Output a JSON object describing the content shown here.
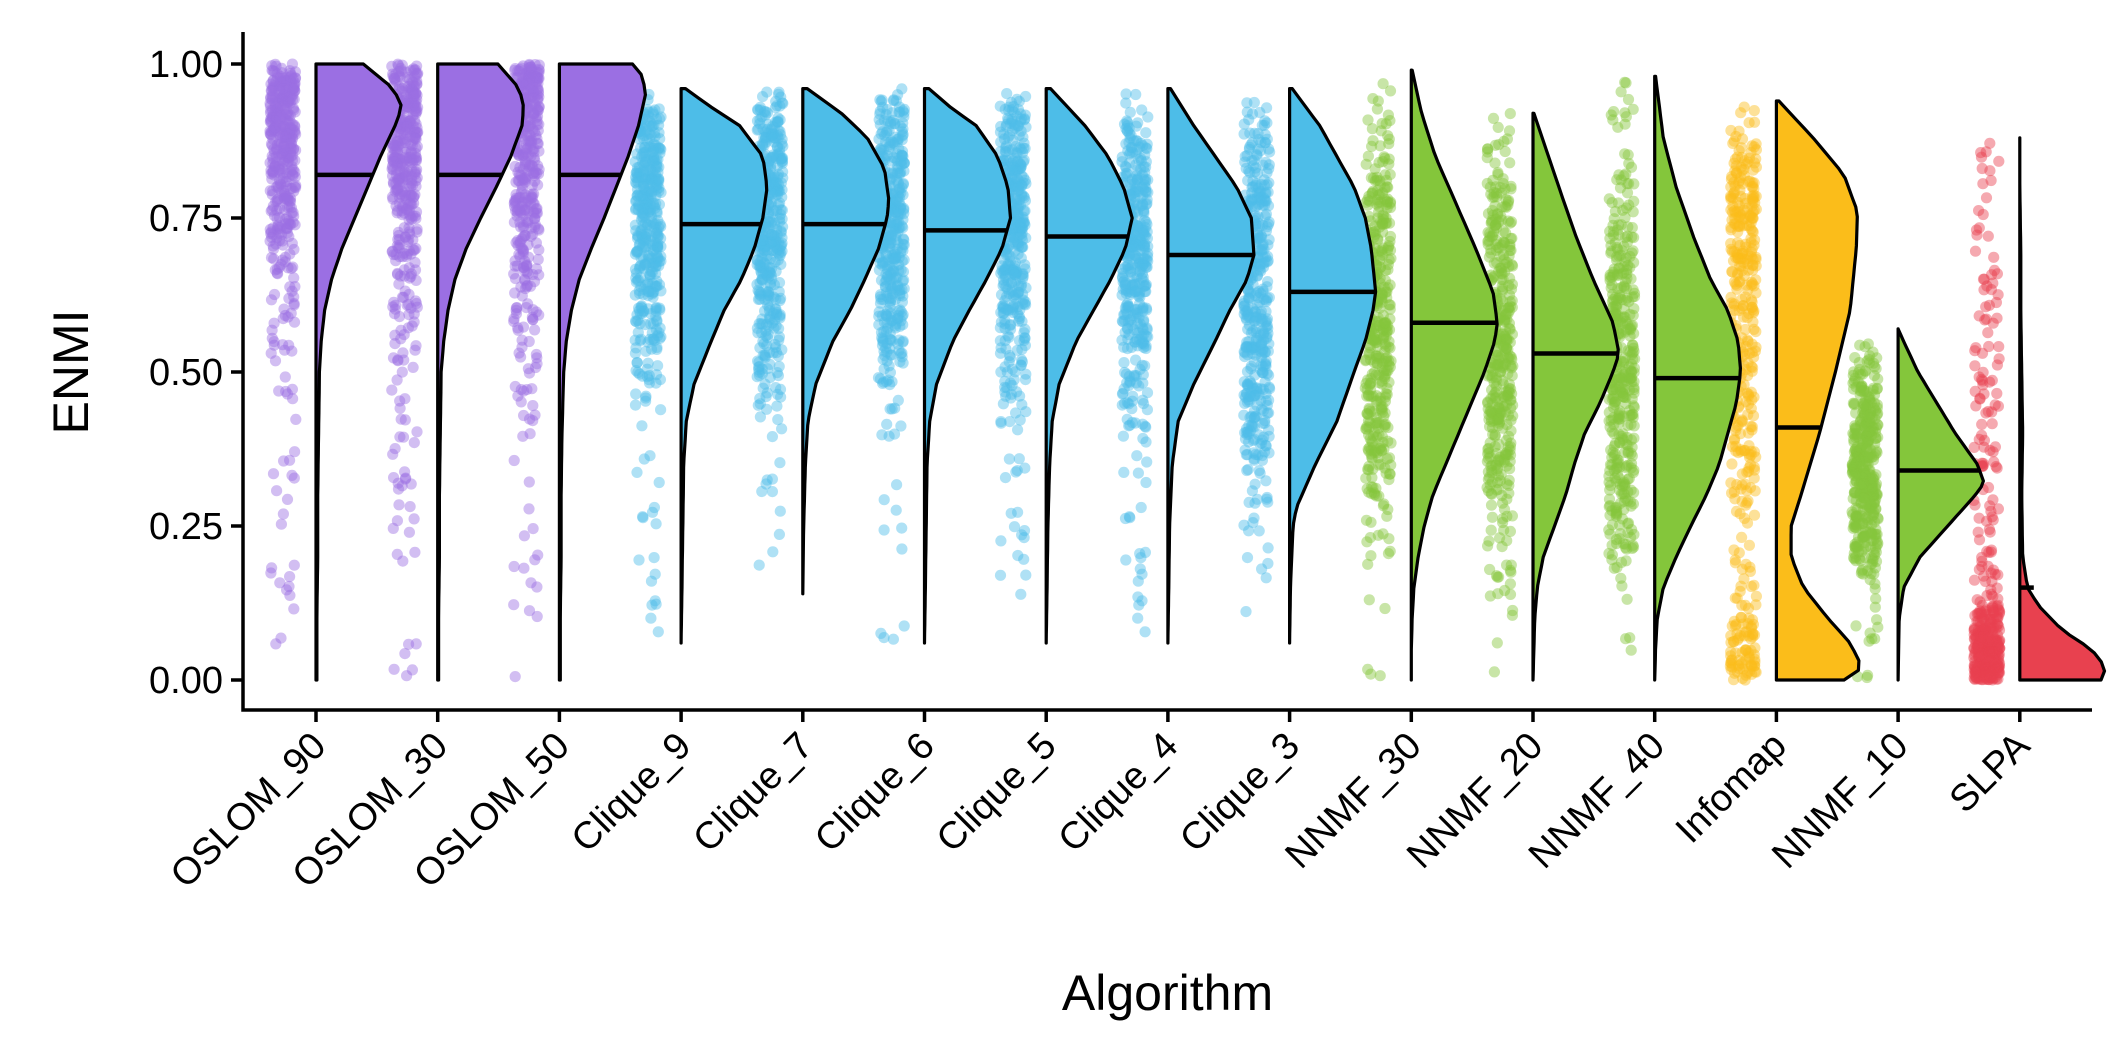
{
  "chart_data": {
    "type": "raincloud",
    "title": "",
    "xlabel": "Algorithm",
    "ylabel": "ENMI",
    "ylim": [
      0,
      1
    ],
    "y_ticks": [
      "0.00",
      "0.25",
      "0.50",
      "0.75",
      "1.00"
    ],
    "y_tick_values": [
      0,
      0.25,
      0.5,
      0.75,
      1.0
    ],
    "categories": [
      "OSLOM_90",
      "OSLOM_30",
      "OSLOM_50",
      "Clique_9",
      "Clique_7",
      "Clique_6",
      "Clique_5",
      "Clique_4",
      "Clique_3",
      "NNMF_30",
      "NNMF_20",
      "NNMF_40",
      "Infomap",
      "NNMF_10",
      "SLPA"
    ],
    "colors": {
      "OSLOM": "#9b6fe3",
      "Clique": "#4dbde8",
      "NNMF": "#84c63b",
      "Infomap": "#fbbd1a",
      "SLPA": "#e8414f"
    },
    "series": [
      {
        "category": "OSLOM_90",
        "group": "OSLOM",
        "median": 0.82,
        "min": 0.0,
        "max": 1.0,
        "mode": 0.93,
        "density": [
          [
            0,
            0.01
          ],
          [
            0.1,
            0.01
          ],
          [
            0.2,
            0.02
          ],
          [
            0.3,
            0.02
          ],
          [
            0.4,
            0.03
          ],
          [
            0.5,
            0.04
          ],
          [
            0.55,
            0.06
          ],
          [
            0.6,
            0.1
          ],
          [
            0.65,
            0.18
          ],
          [
            0.7,
            0.3
          ],
          [
            0.75,
            0.45
          ],
          [
            0.8,
            0.6
          ],
          [
            0.85,
            0.75
          ],
          [
            0.9,
            0.92
          ],
          [
            0.93,
            1.0
          ],
          [
            0.96,
            0.9
          ],
          [
            1.0,
            0.55
          ]
        ]
      },
      {
        "category": "OSLOM_30",
        "group": "OSLOM",
        "median": 0.82,
        "min": 0.0,
        "max": 1.0,
        "mode": 0.93,
        "density": [
          [
            0,
            0.01
          ],
          [
            0.1,
            0.01
          ],
          [
            0.2,
            0.02
          ],
          [
            0.3,
            0.02
          ],
          [
            0.4,
            0.03
          ],
          [
            0.5,
            0.04
          ],
          [
            0.55,
            0.07
          ],
          [
            0.6,
            0.12
          ],
          [
            0.65,
            0.2
          ],
          [
            0.7,
            0.33
          ],
          [
            0.75,
            0.5
          ],
          [
            0.8,
            0.68
          ],
          [
            0.85,
            0.85
          ],
          [
            0.9,
            0.98
          ],
          [
            0.93,
            1.0
          ],
          [
            0.96,
            0.95
          ],
          [
            1.0,
            0.7
          ]
        ]
      },
      {
        "category": "OSLOM_50",
        "group": "OSLOM",
        "median": 0.82,
        "min": 0.0,
        "max": 1.0,
        "mode": 0.95,
        "density": [
          [
            0,
            0.01
          ],
          [
            0.1,
            0.01
          ],
          [
            0.2,
            0.02
          ],
          [
            0.3,
            0.02
          ],
          [
            0.4,
            0.03
          ],
          [
            0.5,
            0.05
          ],
          [
            0.55,
            0.08
          ],
          [
            0.6,
            0.14
          ],
          [
            0.65,
            0.23
          ],
          [
            0.7,
            0.37
          ],
          [
            0.75,
            0.52
          ],
          [
            0.8,
            0.66
          ],
          [
            0.85,
            0.8
          ],
          [
            0.9,
            0.92
          ],
          [
            0.95,
            1.0
          ],
          [
            0.98,
            0.97
          ],
          [
            1.0,
            0.85
          ]
        ]
      },
      {
        "category": "Clique_9",
        "group": "Clique",
        "median": 0.74,
        "min": 0.06,
        "max": 0.96,
        "mode": 0.8,
        "density": [
          [
            0.06,
            0.0
          ],
          [
            0.15,
            0.01
          ],
          [
            0.25,
            0.02
          ],
          [
            0.35,
            0.03
          ],
          [
            0.42,
            0.06
          ],
          [
            0.48,
            0.15
          ],
          [
            0.55,
            0.35
          ],
          [
            0.6,
            0.5
          ],
          [
            0.65,
            0.7
          ],
          [
            0.7,
            0.85
          ],
          [
            0.75,
            0.95
          ],
          [
            0.8,
            1.0
          ],
          [
            0.85,
            0.95
          ],
          [
            0.9,
            0.68
          ],
          [
            0.93,
            0.35
          ],
          [
            0.96,
            0.05
          ]
        ]
      },
      {
        "category": "Clique_7",
        "group": "Clique",
        "median": 0.74,
        "min": 0.14,
        "max": 0.96,
        "mode": 0.78,
        "density": [
          [
            0.14,
            0.0
          ],
          [
            0.25,
            0.01
          ],
          [
            0.35,
            0.03
          ],
          [
            0.42,
            0.06
          ],
          [
            0.48,
            0.15
          ],
          [
            0.55,
            0.35
          ],
          [
            0.6,
            0.55
          ],
          [
            0.65,
            0.72
          ],
          [
            0.7,
            0.88
          ],
          [
            0.75,
            0.98
          ],
          [
            0.78,
            1.0
          ],
          [
            0.83,
            0.95
          ],
          [
            0.88,
            0.75
          ],
          [
            0.92,
            0.45
          ],
          [
            0.96,
            0.05
          ]
        ]
      },
      {
        "category": "Clique_6",
        "group": "Clique",
        "median": 0.73,
        "min": 0.06,
        "max": 0.96,
        "mode": 0.76,
        "density": [
          [
            0.06,
            0.0
          ],
          [
            0.15,
            0.01
          ],
          [
            0.25,
            0.02
          ],
          [
            0.35,
            0.03
          ],
          [
            0.42,
            0.06
          ],
          [
            0.48,
            0.14
          ],
          [
            0.55,
            0.33
          ],
          [
            0.6,
            0.52
          ],
          [
            0.65,
            0.72
          ],
          [
            0.7,
            0.9
          ],
          [
            0.75,
            1.0
          ],
          [
            0.8,
            0.97
          ],
          [
            0.85,
            0.85
          ],
          [
            0.9,
            0.6
          ],
          [
            0.93,
            0.3
          ],
          [
            0.96,
            0.05
          ]
        ]
      },
      {
        "category": "Clique_5",
        "group": "Clique",
        "median": 0.72,
        "min": 0.06,
        "max": 0.96,
        "mode": 0.75,
        "density": [
          [
            0.06,
            0.0
          ],
          [
            0.15,
            0.01
          ],
          [
            0.25,
            0.02
          ],
          [
            0.35,
            0.04
          ],
          [
            0.42,
            0.07
          ],
          [
            0.48,
            0.15
          ],
          [
            0.55,
            0.35
          ],
          [
            0.6,
            0.55
          ],
          [
            0.65,
            0.75
          ],
          [
            0.7,
            0.92
          ],
          [
            0.75,
            1.0
          ],
          [
            0.8,
            0.9
          ],
          [
            0.85,
            0.72
          ],
          [
            0.9,
            0.45
          ],
          [
            0.93,
            0.25
          ],
          [
            0.96,
            0.05
          ]
        ]
      },
      {
        "category": "Clique_4",
        "group": "Clique",
        "median": 0.69,
        "min": 0.06,
        "max": 0.96,
        "mode": 0.69,
        "density": [
          [
            0.06,
            0.0
          ],
          [
            0.15,
            0.01
          ],
          [
            0.25,
            0.02
          ],
          [
            0.35,
            0.05
          ],
          [
            0.42,
            0.12
          ],
          [
            0.48,
            0.3
          ],
          [
            0.55,
            0.55
          ],
          [
            0.6,
            0.72
          ],
          [
            0.65,
            0.92
          ],
          [
            0.69,
            1.0
          ],
          [
            0.75,
            0.97
          ],
          [
            0.8,
            0.8
          ],
          [
            0.85,
            0.55
          ],
          [
            0.9,
            0.3
          ],
          [
            0.96,
            0.03
          ]
        ]
      },
      {
        "category": "Clique_3",
        "group": "Clique",
        "median": 0.63,
        "min": 0.06,
        "max": 0.96,
        "mode": 0.63,
        "density": [
          [
            0.06,
            0.0
          ],
          [
            0.15,
            0.01
          ],
          [
            0.25,
            0.04
          ],
          [
            0.28,
            0.08
          ],
          [
            0.35,
            0.3
          ],
          [
            0.42,
            0.55
          ],
          [
            0.5,
            0.75
          ],
          [
            0.55,
            0.88
          ],
          [
            0.6,
            0.97
          ],
          [
            0.63,
            1.0
          ],
          [
            0.7,
            0.95
          ],
          [
            0.75,
            0.88
          ],
          [
            0.8,
            0.75
          ],
          [
            0.85,
            0.55
          ],
          [
            0.9,
            0.35
          ],
          [
            0.96,
            0.03
          ]
        ]
      },
      {
        "category": "NNMF_30",
        "group": "NNMF",
        "median": 0.58,
        "min": 0.0,
        "max": 0.99,
        "mode": 0.58,
        "density": [
          [
            0.0,
            0.0
          ],
          [
            0.05,
            0.0
          ],
          [
            0.1,
            0.01
          ],
          [
            0.15,
            0.03
          ],
          [
            0.2,
            0.08
          ],
          [
            0.25,
            0.15
          ],
          [
            0.3,
            0.25
          ],
          [
            0.35,
            0.4
          ],
          [
            0.4,
            0.55
          ],
          [
            0.45,
            0.7
          ],
          [
            0.5,
            0.85
          ],
          [
            0.55,
            0.97
          ],
          [
            0.58,
            1.0
          ],
          [
            0.63,
            0.95
          ],
          [
            0.7,
            0.75
          ],
          [
            0.78,
            0.5
          ],
          [
            0.85,
            0.28
          ],
          [
            0.92,
            0.12
          ],
          [
            0.99,
            0.01
          ]
        ]
      },
      {
        "category": "NNMF_20",
        "group": "NNMF",
        "median": 0.53,
        "min": 0.0,
        "max": 0.92,
        "mode": 0.53,
        "density": [
          [
            0.0,
            0.0
          ],
          [
            0.05,
            0.01
          ],
          [
            0.1,
            0.02
          ],
          [
            0.15,
            0.05
          ],
          [
            0.2,
            0.12
          ],
          [
            0.25,
            0.25
          ],
          [
            0.3,
            0.38
          ],
          [
            0.35,
            0.48
          ],
          [
            0.4,
            0.6
          ],
          [
            0.45,
            0.78
          ],
          [
            0.5,
            0.93
          ],
          [
            0.53,
            1.0
          ],
          [
            0.58,
            0.93
          ],
          [
            0.65,
            0.7
          ],
          [
            0.72,
            0.5
          ],
          [
            0.78,
            0.35
          ],
          [
            0.85,
            0.18
          ],
          [
            0.92,
            0.01
          ]
        ]
      },
      {
        "category": "NNMF_40",
        "group": "NNMF",
        "median": 0.49,
        "min": 0.0,
        "max": 0.98,
        "mode": 0.5,
        "density": [
          [
            0.0,
            0.0
          ],
          [
            0.05,
            0.01
          ],
          [
            0.1,
            0.03
          ],
          [
            0.15,
            0.1
          ],
          [
            0.2,
            0.25
          ],
          [
            0.25,
            0.42
          ],
          [
            0.3,
            0.6
          ],
          [
            0.35,
            0.75
          ],
          [
            0.4,
            0.85
          ],
          [
            0.45,
            0.95
          ],
          [
            0.5,
            1.0
          ],
          [
            0.55,
            0.97
          ],
          [
            0.6,
            0.85
          ],
          [
            0.65,
            0.65
          ],
          [
            0.72,
            0.45
          ],
          [
            0.8,
            0.25
          ],
          [
            0.88,
            0.1
          ],
          [
            0.98,
            0.01
          ]
        ]
      },
      {
        "category": "Infomap",
        "group": "Infomap",
        "median": 0.41,
        "min": 0.0,
        "max": 0.94,
        "mode": 0.02,
        "density": [
          [
            0.0,
            0.55
          ],
          [
            0.02,
            0.7
          ],
          [
            0.06,
            0.6
          ],
          [
            0.1,
            0.42
          ],
          [
            0.15,
            0.22
          ],
          [
            0.2,
            0.12
          ],
          [
            0.25,
            0.12
          ],
          [
            0.3,
            0.2
          ],
          [
            0.4,
            0.35
          ],
          [
            0.5,
            0.48
          ],
          [
            0.6,
            0.6
          ],
          [
            0.7,
            0.65
          ],
          [
            0.76,
            0.66
          ],
          [
            0.82,
            0.55
          ],
          [
            0.88,
            0.3
          ],
          [
            0.94,
            0.02
          ]
        ]
      },
      {
        "category": "NNMF_10",
        "group": "NNMF",
        "median": 0.34,
        "min": 0.0,
        "max": 0.57,
        "mode": 0.32,
        "density": [
          [
            0.0,
            0.0
          ],
          [
            0.1,
            0.01
          ],
          [
            0.15,
            0.05
          ],
          [
            0.2,
            0.2
          ],
          [
            0.25,
            0.45
          ],
          [
            0.3,
            0.7
          ],
          [
            0.32,
            0.78
          ],
          [
            0.35,
            0.72
          ],
          [
            0.4,
            0.52
          ],
          [
            0.45,
            0.35
          ],
          [
            0.5,
            0.18
          ],
          [
            0.55,
            0.05
          ],
          [
            0.57,
            0.0
          ]
        ]
      },
      {
        "category": "SLPA",
        "group": "SLPA",
        "median": 0.15,
        "min": 0.0,
        "max": 0.88,
        "mode": 0.02,
        "density": [
          [
            0.0,
            0.85
          ],
          [
            0.02,
            0.9
          ],
          [
            0.05,
            0.75
          ],
          [
            0.08,
            0.45
          ],
          [
            0.12,
            0.2
          ],
          [
            0.15,
            0.08
          ],
          [
            0.2,
            0.03
          ],
          [
            0.3,
            0.02
          ],
          [
            0.4,
            0.03
          ],
          [
            0.5,
            0.02
          ],
          [
            0.6,
            0.01
          ],
          [
            0.7,
            0.01
          ],
          [
            0.8,
            0.0
          ],
          [
            0.88,
            0.0
          ]
        ]
      }
    ]
  }
}
